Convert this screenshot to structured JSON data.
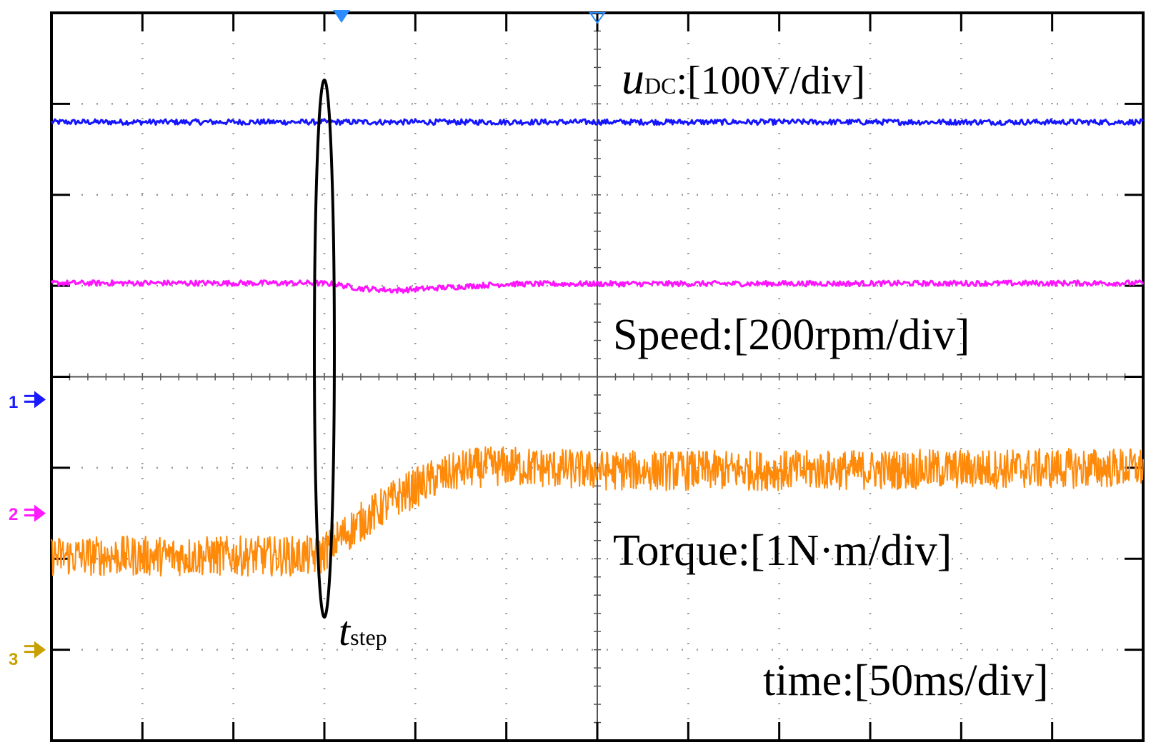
{
  "chart_data": {
    "type": "line",
    "title": "",
    "xlabel": "time:[50ms/div]",
    "grid": {
      "x_divisions": 12,
      "y_divisions": 8,
      "style": "dotted"
    },
    "x_range_div": [
      0,
      12
    ],
    "y_range_div": [
      -4,
      4
    ],
    "step_time_div": 3,
    "step_label": {
      "main": "t",
      "sub": "step"
    },
    "channel_markers": [
      {
        "text": "1",
        "color": "#1a1aff",
        "position_div": -0.25
      },
      {
        "text": "2",
        "color": "#ff1aff",
        "position_div": -1.5
      },
      {
        "text": "3",
        "color": "#c8a000",
        "position_div": -3.0
      }
    ],
    "series": [
      {
        "name": "u_DC",
        "label_main": "u",
        "label_sub": "DC",
        "label_rest": ":[100V/div]",
        "color": "#1515ff",
        "scale": "100V/div",
        "x": [
          0,
          12
        ],
        "y": [
          2.8,
          2.8
        ],
        "noise_div": 0.03
      },
      {
        "name": "Speed",
        "label": "Speed:[200rpm/div]",
        "color": "#ff14ff",
        "scale": "200rpm/div",
        "x": [
          0,
          2.9,
          3.1,
          3.4,
          3.8,
          4.3,
          5.0,
          12
        ],
        "y": [
          1.03,
          1.03,
          1.02,
          0.97,
          0.95,
          0.98,
          1.02,
          1.03
        ],
        "noise_div": 0.03
      },
      {
        "name": "Torque",
        "label": "Torque:[1N·m/div]",
        "color": "#ff8a0a",
        "scale": "1N·m/div",
        "x": [
          0,
          2.95,
          3.1,
          3.4,
          3.8,
          4.2,
          4.6,
          5.0,
          6.0,
          8.0,
          12
        ],
        "y": [
          -1.97,
          -1.97,
          -1.82,
          -1.6,
          -1.32,
          -1.12,
          -1.0,
          -0.98,
          -1.03,
          -1.03,
          -1.0
        ],
        "noise_div": 0.22
      }
    ]
  }
}
